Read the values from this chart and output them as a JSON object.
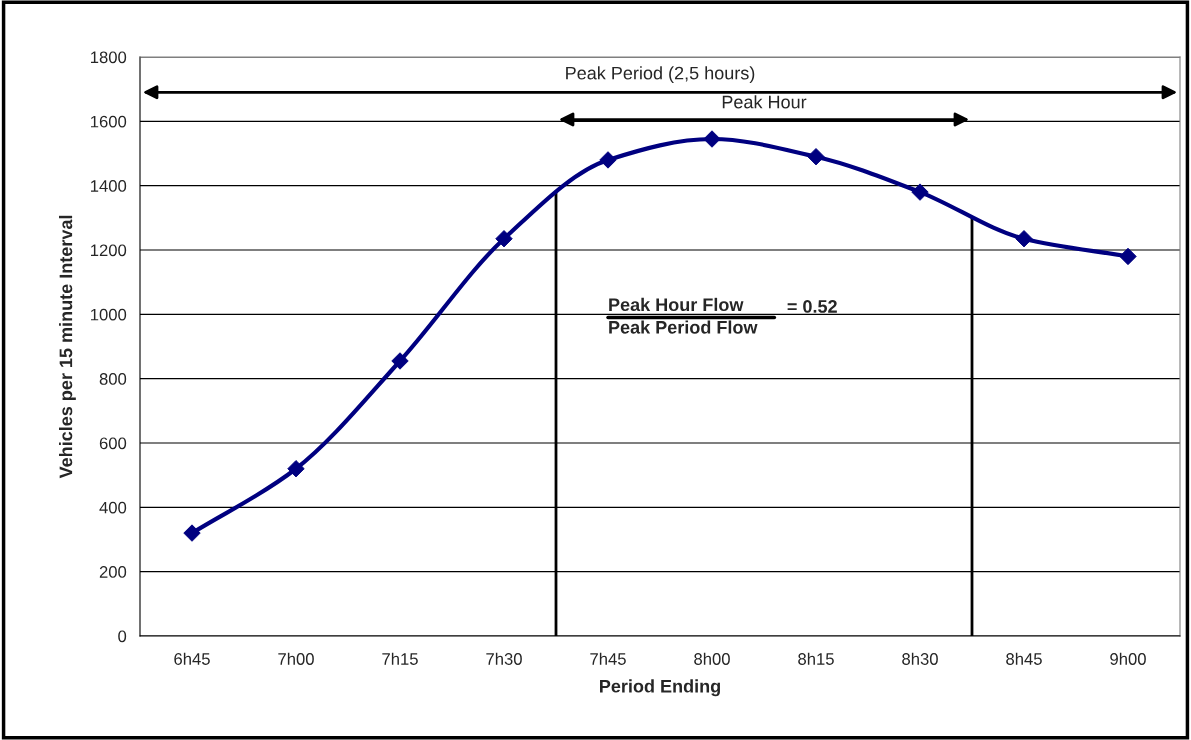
{
  "chart_data": {
    "type": "line",
    "xlabel": "Period Ending",
    "ylabel": "Vehicles per 15 minute Interval",
    "categories": [
      "6h45",
      "7h00",
      "7h15",
      "7h30",
      "7h45",
      "8h00",
      "8h15",
      "8h30",
      "8h45",
      "9h00"
    ],
    "series": [
      {
        "color": "#000080",
        "values": [
          320,
          520,
          855,
          1235,
          1480,
          1545,
          1490,
          1380,
          1235,
          1180
        ]
      }
    ],
    "marker": "diamond",
    "ylim": [
      0,
      1800
    ],
    "yticks": [
      0,
      200,
      400,
      600,
      800,
      1000,
      1200,
      1400,
      1600,
      1800
    ],
    "grid": "y",
    "annotations": [
      "Peak Period (2,5 hours)",
      "Peak Hour",
      "Peak Hour Flow",
      "Peak Period Flow",
      "= 0.52"
    ]
  }
}
